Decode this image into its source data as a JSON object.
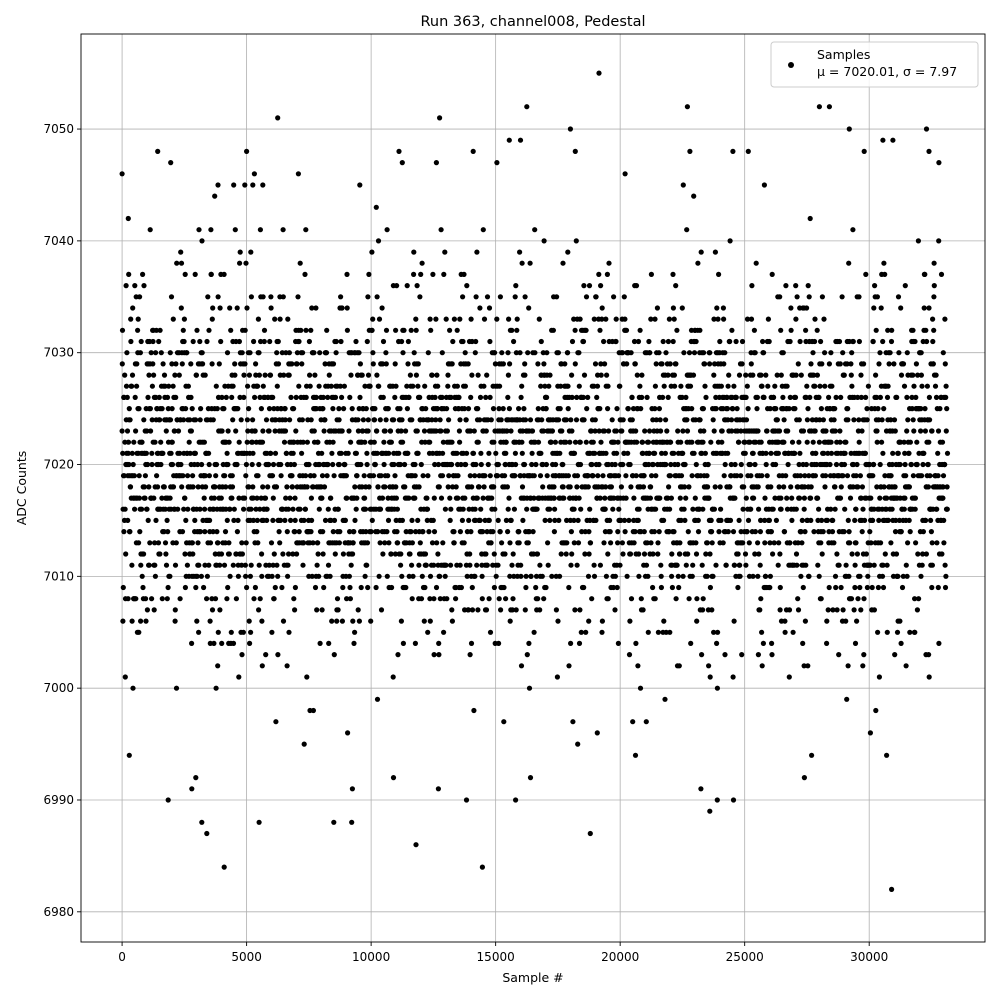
{
  "chart_data": {
    "type": "scatter",
    "title": "Run 363, channel008, Pedestal",
    "xlabel": "Sample #",
    "ylabel": "ADC Counts",
    "xlim": [
      -1650,
      34650
    ],
    "ylim": [
      6977.3,
      7058.5
    ],
    "grid": true,
    "legend_position": "top-right",
    "marker_color": "#000000",
    "x_ticks": [
      0,
      5000,
      10000,
      15000,
      20000,
      25000,
      30000
    ],
    "y_ticks": [
      6980,
      6990,
      7000,
      7010,
      7020,
      7030,
      7040,
      7050
    ],
    "series": [
      {
        "name": "Samples",
        "stats_label": "μ = 7020.01, σ = 7.97",
        "n_samples": 33150,
        "sample_step": 1,
        "value_range": [
          6982,
          7055
        ],
        "outliers": [
          [
            0,
            7046
          ],
          [
            250,
            7042
          ],
          [
            290,
            6994
          ],
          [
            1430,
            7048
          ],
          [
            1850,
            6990
          ],
          [
            1950,
            7047
          ],
          [
            2800,
            6991
          ],
          [
            2960,
            6992
          ],
          [
            3200,
            6988
          ],
          [
            3400,
            6987
          ],
          [
            3720,
            7044
          ],
          [
            3850,
            7045
          ],
          [
            4100,
            6984
          ],
          [
            5000,
            7048
          ],
          [
            5250,
            7045
          ],
          [
            5500,
            6988
          ],
          [
            5650,
            7045
          ],
          [
            6250,
            7051
          ],
          [
            7080,
            7046
          ],
          [
            8500,
            6988
          ],
          [
            9220,
            6988
          ],
          [
            9250,
            6991
          ],
          [
            10900,
            6992
          ],
          [
            11250,
            7047
          ],
          [
            11800,
            6986
          ],
          [
            12620,
            7047
          ],
          [
            12700,
            6991
          ],
          [
            12750,
            7051
          ],
          [
            13830,
            6990
          ],
          [
            14100,
            7048
          ],
          [
            14470,
            6984
          ],
          [
            15050,
            7047
          ],
          [
            15550,
            7049
          ],
          [
            15800,
            6990
          ],
          [
            16000,
            7049
          ],
          [
            16250,
            7052
          ],
          [
            16400,
            6992
          ],
          [
            18000,
            7050
          ],
          [
            18200,
            7048
          ],
          [
            18800,
            6987
          ],
          [
            19150,
            7055
          ],
          [
            20200,
            7046
          ],
          [
            22700,
            7052
          ],
          [
            22800,
            7048
          ],
          [
            23600,
            6989
          ],
          [
            23900,
            6990
          ],
          [
            24550,
            6990
          ],
          [
            27400,
            6992
          ],
          [
            28000,
            7052
          ],
          [
            28400,
            7052
          ],
          [
            29200,
            7050
          ],
          [
            29800,
            7048
          ],
          [
            30050,
            6996
          ],
          [
            30550,
            7049
          ],
          [
            30700,
            6994
          ],
          [
            30900,
            6982
          ],
          [
            30950,
            7049
          ],
          [
            32300,
            7050
          ],
          [
            32400,
            7048
          ],
          [
            32800,
            7047
          ]
        ]
      }
    ]
  }
}
